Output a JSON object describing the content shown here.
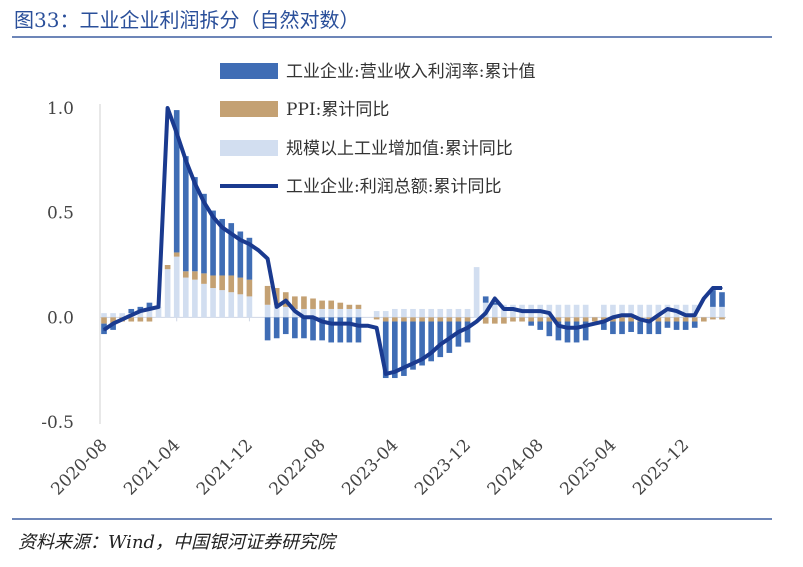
{
  "title": "图33：工业企业利润拆分（自然对数）",
  "source": "资料来源：Wind，中国银河证券研究院",
  "colors": {
    "margin": "#3f6db5",
    "ppi": "#c4a173",
    "ip": "#d2def0",
    "profit": "#1a3a8f",
    "rule": "#6d86b8",
    "title": "#2a4f9a"
  },
  "chart_data": {
    "type": "bar",
    "ylim": [
      -0.5,
      1.0
    ],
    "yticks": [
      "1.0",
      "0.5",
      "0.0",
      "-0.5"
    ],
    "ytick_values": [
      1.0,
      0.5,
      0.0,
      -0.5
    ],
    "x_tick_labels": [
      "2020-08",
      "2021-04",
      "2021-12",
      "2022-08",
      "2023-04",
      "2023-12",
      "2024-08",
      "2025-04",
      "2025-12"
    ],
    "x_tick_indices": [
      0,
      8,
      16,
      24,
      32,
      40,
      48,
      56,
      64
    ],
    "x": [
      "2020-08",
      "2020-09",
      "2020-10",
      "2020-11",
      "2020-12",
      "2021-01",
      "2021-02",
      "2021-03",
      "2021-04",
      "2021-05",
      "2021-06",
      "2021-07",
      "2021-08",
      "2021-09",
      "2021-10",
      "2021-11",
      "2021-12",
      "2022-01",
      "2022-02",
      "2022-03",
      "2022-04",
      "2022-05",
      "2022-06",
      "2022-07",
      "2022-08",
      "2022-09",
      "2022-10",
      "2022-11",
      "2022-12",
      "2023-01",
      "2023-02",
      "2023-03",
      "2023-04",
      "2023-05",
      "2023-06",
      "2023-07",
      "2023-08",
      "2023-09",
      "2023-10",
      "2023-11",
      "2023-12",
      "2024-01",
      "2024-02",
      "2024-03",
      "2024-04",
      "2024-05",
      "2024-06",
      "2024-07",
      "2024-08",
      "2024-09",
      "2024-10",
      "2024-11",
      "2024-12",
      "2025-01",
      "2025-02",
      "2025-03",
      "2025-04",
      "2025-05",
      "2025-06",
      "2025-07",
      "2025-08",
      "2025-09",
      "2025-10",
      "2025-11",
      "2025-12",
      "2026-01",
      "2026-02",
      "2026-03",
      "2026-04"
    ],
    "legend": [
      {
        "key": "margin",
        "label": "工业企业:营业收入利润率:累计值",
        "kind": "bar"
      },
      {
        "key": "ppi",
        "label": "PPI:累计同比",
        "kind": "bar"
      },
      {
        "key": "ip",
        "label": "规模以上工业增加值:累计同比",
        "kind": "bar"
      },
      {
        "key": "profit",
        "label": "工业企业:利润总额:累计同比",
        "kind": "line"
      }
    ],
    "series": [
      {
        "key": "margin",
        "values": [
          -0.05,
          -0.03,
          0.0,
          0.02,
          0.02,
          0.03,
          0.0,
          0.0,
          0.68,
          0.55,
          0.45,
          0.38,
          0.31,
          0.27,
          0.25,
          0.22,
          0.2,
          0.0,
          -0.11,
          -0.1,
          -0.08,
          -0.1,
          -0.1,
          -0.11,
          -0.11,
          -0.12,
          -0.12,
          -0.12,
          -0.12,
          0.0,
          0.0,
          -0.27,
          -0.27,
          -0.26,
          -0.23,
          -0.21,
          -0.19,
          -0.17,
          -0.15,
          -0.12,
          -0.1,
          0.0,
          0.03,
          0.01,
          0.0,
          0.0,
          0.0,
          -0.02,
          -0.04,
          -0.07,
          -0.09,
          -0.1,
          -0.1,
          -0.09,
          0.0,
          -0.04,
          -0.06,
          -0.06,
          -0.05,
          -0.06,
          -0.06,
          -0.06,
          -0.03,
          -0.04,
          -0.04,
          -0.03,
          0.0,
          0.08,
          0.07
        ]
      },
      {
        "key": "ppi",
        "values": [
          -0.03,
          -0.03,
          -0.02,
          -0.02,
          -0.02,
          -0.02,
          0.0,
          0.02,
          0.02,
          0.03,
          0.04,
          0.05,
          0.06,
          0.07,
          0.08,
          0.08,
          0.08,
          0.0,
          0.09,
          0.08,
          0.07,
          0.06,
          0.06,
          0.05,
          0.04,
          0.04,
          0.03,
          0.02,
          0.02,
          0.0,
          -0.01,
          -0.02,
          -0.02,
          -0.02,
          -0.02,
          -0.02,
          -0.02,
          -0.02,
          -0.02,
          -0.02,
          -0.02,
          0.0,
          -0.03,
          -0.03,
          -0.03,
          -0.02,
          -0.02,
          -0.02,
          -0.02,
          -0.02,
          -0.02,
          -0.02,
          -0.02,
          -0.02,
          -0.02,
          -0.02,
          -0.02,
          -0.02,
          -0.02,
          -0.02,
          -0.02,
          -0.02,
          -0.02,
          -0.02,
          -0.02,
          -0.02,
          -0.02,
          -0.01,
          -0.01
        ]
      },
      {
        "key": "ip",
        "values": [
          0.02,
          0.02,
          0.02,
          0.02,
          0.03,
          0.04,
          0.05,
          0.23,
          0.29,
          0.19,
          0.18,
          0.16,
          0.14,
          0.13,
          0.12,
          0.11,
          0.1,
          0.0,
          0.06,
          0.06,
          0.05,
          0.04,
          0.04,
          0.04,
          0.04,
          0.04,
          0.04,
          0.04,
          0.04,
          0.0,
          0.03,
          0.03,
          0.04,
          0.04,
          0.04,
          0.04,
          0.04,
          0.04,
          0.04,
          0.04,
          0.04,
          0.24,
          0.07,
          0.06,
          0.06,
          0.06,
          0.06,
          0.06,
          0.06,
          0.06,
          0.06,
          0.06,
          0.06,
          0.06,
          0.0,
          0.06,
          0.06,
          0.06,
          0.06,
          0.06,
          0.06,
          0.06,
          0.06,
          0.06,
          0.06,
          0.06,
          0.0,
          0.05,
          0.05
        ]
      },
      {
        "key": "profit",
        "values": [
          -0.06,
          -0.03,
          -0.01,
          0.01,
          0.03,
          0.04,
          0.05,
          1.0,
          0.88,
          0.75,
          0.64,
          0.55,
          0.48,
          0.43,
          0.4,
          0.37,
          0.35,
          0.32,
          0.28,
          0.05,
          0.08,
          0.03,
          0.0,
          0.0,
          -0.02,
          -0.03,
          -0.03,
          -0.03,
          -0.04,
          -0.04,
          -0.05,
          -0.27,
          -0.26,
          -0.24,
          -0.22,
          -0.2,
          -0.17,
          -0.13,
          -0.1,
          -0.07,
          -0.05,
          -0.02,
          0.02,
          0.09,
          0.04,
          0.04,
          0.03,
          0.03,
          0.03,
          0.02,
          -0.04,
          -0.05,
          -0.05,
          -0.04,
          -0.03,
          -0.02,
          0.0,
          0.01,
          0.01,
          -0.01,
          -0.02,
          0.01,
          0.04,
          0.03,
          0.01,
          0.01,
          0.09,
          0.14,
          0.14
        ]
      }
    ]
  }
}
